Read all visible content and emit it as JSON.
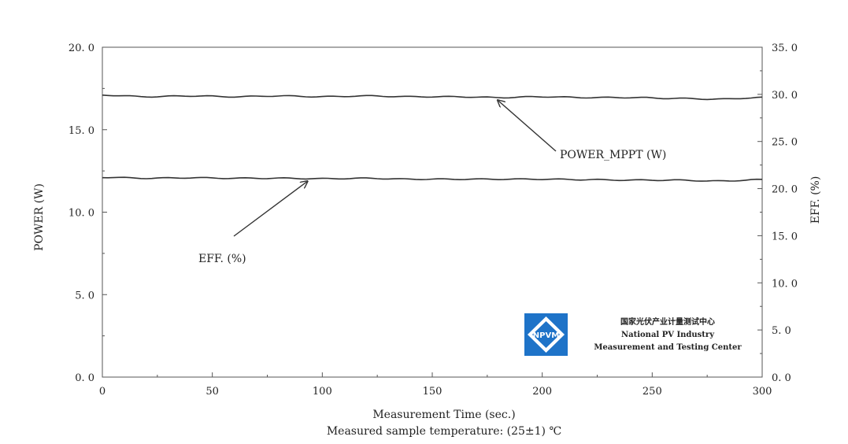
{
  "chart_data": {
    "type": "line",
    "x": [
      0,
      20,
      40,
      60,
      80,
      100,
      120,
      140,
      160,
      180,
      200,
      220,
      240,
      260,
      280,
      300
    ],
    "series": [
      {
        "name": "POWER_MPPT (W)",
        "axis": "left",
        "values": [
          17.1,
          17.0,
          17.05,
          17.0,
          17.05,
          17.0,
          17.05,
          17.0,
          17.0,
          16.95,
          17.0,
          16.95,
          16.95,
          16.9,
          16.85,
          16.95
        ]
      },
      {
        "name": "EFF. (%)",
        "axis": "right",
        "values": [
          21.2,
          21.1,
          21.15,
          21.1,
          21.1,
          21.05,
          21.1,
          21.0,
          21.0,
          21.0,
          21.0,
          20.95,
          20.9,
          20.9,
          20.8,
          20.95
        ]
      }
    ],
    "xlabel": "Measurement Time (sec.)",
    "subtitle": "Measured sample temperature: (25±1) ℃",
    "ylabel_left": "POWER (W)",
    "ylabel_right": "EFF. (%)",
    "xlim": [
      0,
      300
    ],
    "ylim_left": [
      0,
      20
    ],
    "ylim_right": [
      0,
      35
    ],
    "x_ticks": [
      "0",
      "50",
      "100",
      "150",
      "200",
      "250",
      "300"
    ],
    "y_ticks_left": [
      "0. 0",
      "5. 0",
      "10. 0",
      "15. 0",
      "20. 0"
    ],
    "y_ticks_right": [
      "0. 0",
      "5. 0",
      "10. 0",
      "15. 0",
      "20. 0",
      "25. 0",
      "30. 0",
      "35. 0"
    ],
    "grid": false,
    "annotations": [
      {
        "text": "POWER_MPPT (W)",
        "target_series": 0,
        "target_x": 180
      },
      {
        "text": "EFF. (%)",
        "target_series": 1,
        "target_x": 93
      }
    ],
    "colors": {
      "line": "#333333",
      "logo_blue": "#1e73c8"
    }
  },
  "logo": {
    "badge_text": "NPVM",
    "line1": "国家光伏产业计量测试中心",
    "line2": "National PV Industry",
    "line3": "Measurement and Testing Center"
  }
}
